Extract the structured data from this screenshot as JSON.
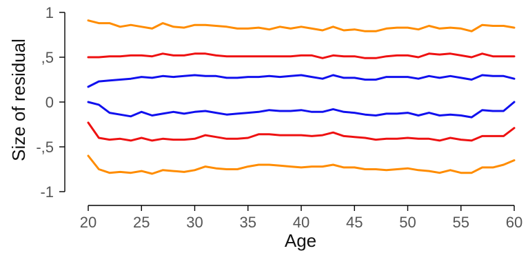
{
  "chart_data": {
    "type": "line",
    "title": "",
    "xlabel": "Age",
    "ylabel": "Size of residual",
    "xlim": [
      20,
      60
    ],
    "ylim": [
      -1,
      1
    ],
    "grid": false,
    "legend": "none",
    "x_ticks": [
      20,
      25,
      30,
      35,
      40,
      45,
      50,
      55,
      60
    ],
    "y_ticks": [
      {
        "value": 1,
        "label": "1"
      },
      {
        "value": 0.5,
        "label": ",5"
      },
      {
        "value": 0,
        "label": "0"
      },
      {
        "value": -0.5,
        "label": "-,5"
      },
      {
        "value": -1,
        "label": "-1"
      }
    ],
    "x": [
      20,
      21,
      22,
      23,
      24,
      25,
      26,
      27,
      28,
      29,
      30,
      31,
      32,
      33,
      34,
      35,
      36,
      37,
      38,
      39,
      40,
      41,
      42,
      43,
      44,
      45,
      46,
      47,
      48,
      49,
      50,
      51,
      52,
      53,
      54,
      55,
      56,
      57,
      58,
      59,
      60
    ],
    "series": [
      {
        "color": "#ff8c00",
        "values": [
          0.91,
          0.88,
          0.88,
          0.84,
          0.86,
          0.84,
          0.82,
          0.88,
          0.84,
          0.83,
          0.86,
          0.86,
          0.85,
          0.84,
          0.82,
          0.82,
          0.83,
          0.81,
          0.84,
          0.82,
          0.84,
          0.82,
          0.8,
          0.84,
          0.8,
          0.81,
          0.79,
          0.79,
          0.82,
          0.83,
          0.83,
          0.81,
          0.85,
          0.82,
          0.83,
          0.82,
          0.79,
          0.86,
          0.85,
          0.85,
          0.83
        ]
      },
      {
        "color": "#ee1111",
        "values": [
          0.5,
          0.5,
          0.51,
          0.51,
          0.52,
          0.52,
          0.51,
          0.54,
          0.52,
          0.52,
          0.54,
          0.54,
          0.52,
          0.51,
          0.51,
          0.51,
          0.51,
          0.51,
          0.51,
          0.51,
          0.52,
          0.52,
          0.49,
          0.52,
          0.51,
          0.51,
          0.49,
          0.49,
          0.51,
          0.52,
          0.52,
          0.5,
          0.54,
          0.53,
          0.54,
          0.52,
          0.5,
          0.54,
          0.51,
          0.51,
          0.51
        ]
      },
      {
        "color": "#1010ee",
        "values": [
          0.17,
          0.23,
          0.24,
          0.25,
          0.26,
          0.28,
          0.27,
          0.29,
          0.28,
          0.29,
          0.3,
          0.29,
          0.29,
          0.27,
          0.27,
          0.28,
          0.28,
          0.29,
          0.28,
          0.29,
          0.3,
          0.28,
          0.26,
          0.3,
          0.27,
          0.27,
          0.25,
          0.25,
          0.28,
          0.28,
          0.28,
          0.26,
          0.29,
          0.27,
          0.29,
          0.27,
          0.25,
          0.3,
          0.29,
          0.29,
          0.26
        ]
      },
      {
        "color": "#1010ee",
        "values": [
          0.0,
          -0.03,
          -0.12,
          -0.14,
          -0.16,
          -0.11,
          -0.15,
          -0.13,
          -0.11,
          -0.13,
          -0.11,
          -0.1,
          -0.12,
          -0.14,
          -0.13,
          -0.12,
          -0.11,
          -0.09,
          -0.1,
          -0.1,
          -0.09,
          -0.11,
          -0.11,
          -0.08,
          -0.11,
          -0.12,
          -0.14,
          -0.15,
          -0.13,
          -0.13,
          -0.12,
          -0.15,
          -0.12,
          -0.15,
          -0.14,
          -0.15,
          -0.17,
          -0.09,
          -0.1,
          -0.1,
          0.0
        ]
      },
      {
        "color": "#ee1111",
        "values": [
          -0.23,
          -0.4,
          -0.42,
          -0.41,
          -0.43,
          -0.4,
          -0.43,
          -0.41,
          -0.42,
          -0.42,
          -0.41,
          -0.37,
          -0.39,
          -0.41,
          -0.41,
          -0.4,
          -0.36,
          -0.36,
          -0.37,
          -0.37,
          -0.37,
          -0.38,
          -0.37,
          -0.34,
          -0.38,
          -0.39,
          -0.4,
          -0.42,
          -0.41,
          -0.41,
          -0.4,
          -0.41,
          -0.41,
          -0.43,
          -0.4,
          -0.42,
          -0.43,
          -0.38,
          -0.38,
          -0.38,
          -0.29
        ]
      },
      {
        "color": "#ff8c00",
        "values": [
          -0.6,
          -0.75,
          -0.79,
          -0.78,
          -0.79,
          -0.77,
          -0.8,
          -0.76,
          -0.77,
          -0.78,
          -0.76,
          -0.72,
          -0.74,
          -0.75,
          -0.75,
          -0.72,
          -0.7,
          -0.7,
          -0.71,
          -0.72,
          -0.73,
          -0.72,
          -0.72,
          -0.7,
          -0.73,
          -0.73,
          -0.75,
          -0.75,
          -0.76,
          -0.75,
          -0.74,
          -0.76,
          -0.77,
          -0.79,
          -0.76,
          -0.79,
          -0.79,
          -0.73,
          -0.73,
          -0.7,
          -0.65
        ]
      }
    ]
  }
}
